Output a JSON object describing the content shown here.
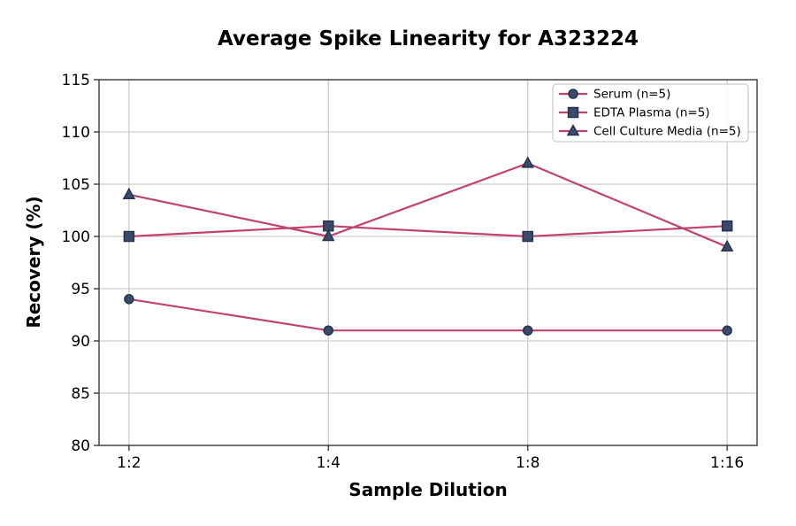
{
  "chart_data": {
    "type": "line",
    "title": "Average Spike Linearity for A323224",
    "xlabel": "Sample Dilution",
    "ylabel": "Recovery (%)",
    "categories": [
      "1:2",
      "1:4",
      "1:8",
      "1:16"
    ],
    "series": [
      {
        "name": "Serum (n=5)",
        "marker": "circle",
        "values": [
          94,
          91,
          91,
          91
        ]
      },
      {
        "name": "EDTA Plasma (n=5)",
        "marker": "square",
        "values": [
          100,
          101,
          100,
          101
        ]
      },
      {
        "name": "Cell Culture Media (n=5)",
        "marker": "triangle",
        "values": [
          104,
          100,
          107,
          99
        ]
      }
    ],
    "ylim": [
      80,
      115
    ],
    "ytick_step": 5,
    "yticks": [
      80,
      85,
      90,
      95,
      100,
      105,
      110,
      115
    ],
    "grid": true,
    "legend_position": "upper right",
    "colors": {
      "line": "#c2426d",
      "marker_fill": "#3b4a6b",
      "marker_edge": "#263450",
      "grid": "#cccccc",
      "spine": "#3c3c3c",
      "text": "#000000",
      "legend_border": "#cccccc",
      "background": "#ffffff"
    }
  }
}
